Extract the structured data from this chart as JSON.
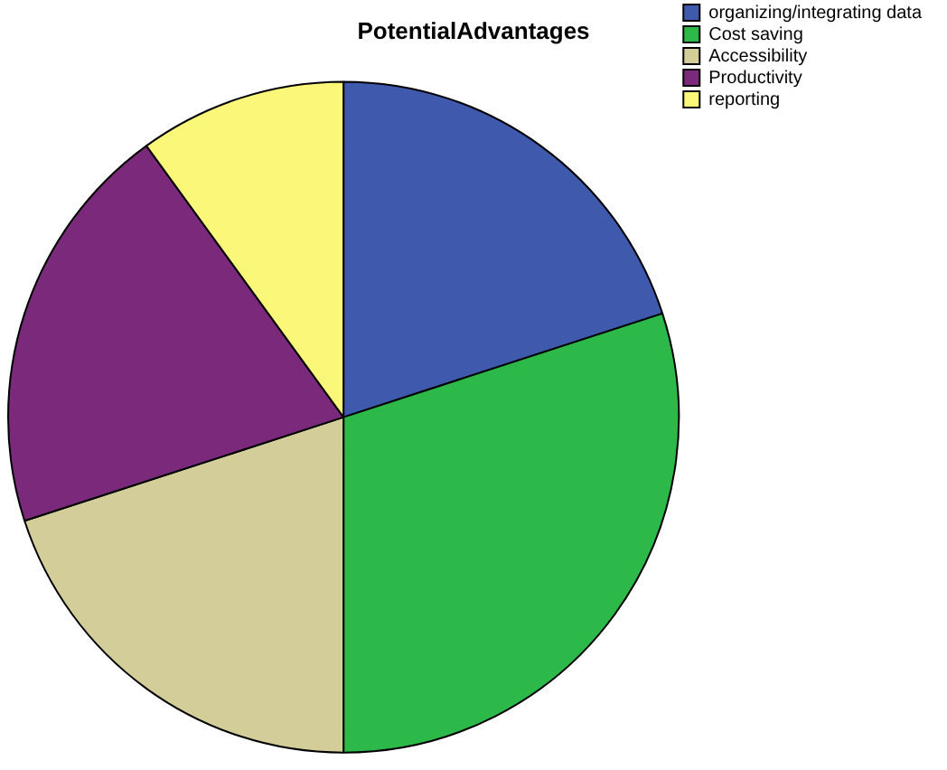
{
  "chart_data": {
    "type": "pie",
    "title": "PotentialAdvantages",
    "categories": [
      "organizing/integrating data",
      "Cost saving",
      "Accessibility",
      "Productivity",
      "reporting"
    ],
    "values": [
      20,
      30,
      20,
      20,
      10
    ],
    "colors": [
      "#3f5aad",
      "#2db84a",
      "#d3cd99",
      "#7b2a7b",
      "#fbf779"
    ],
    "legend": "top right"
  }
}
